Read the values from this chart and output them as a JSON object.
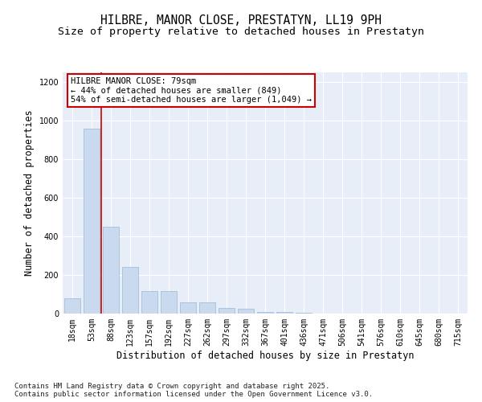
{
  "title": "HILBRE, MANOR CLOSE, PRESTATYN, LL19 9PH",
  "subtitle": "Size of property relative to detached houses in Prestatyn",
  "xlabel": "Distribution of detached houses by size in Prestatyn",
  "ylabel": "Number of detached properties",
  "categories": [
    "18sqm",
    "53sqm",
    "88sqm",
    "123sqm",
    "157sqm",
    "192sqm",
    "227sqm",
    "262sqm",
    "297sqm",
    "332sqm",
    "367sqm",
    "401sqm",
    "436sqm",
    "471sqm",
    "506sqm",
    "541sqm",
    "576sqm",
    "610sqm",
    "645sqm",
    "680sqm",
    "715sqm"
  ],
  "values": [
    80,
    960,
    450,
    240,
    115,
    115,
    60,
    60,
    30,
    25,
    10,
    10,
    5,
    0,
    0,
    0,
    0,
    0,
    0,
    0,
    0
  ],
  "bar_color": "#c9d9ee",
  "bar_edge_color": "#9ab8d8",
  "vline_x_index": 2,
  "vline_color": "#cc0000",
  "vline_linewidth": 1.2,
  "annotation_text": "HILBRE MANOR CLOSE: 79sqm\n← 44% of detached houses are smaller (849)\n54% of semi-detached houses are larger (1,049) →",
  "annotation_box_color": "#ffffff",
  "annotation_box_edge": "#cc0000",
  "ylim": [
    0,
    1250
  ],
  "yticks": [
    0,
    200,
    400,
    600,
    800,
    1000,
    1200
  ],
  "background_color": "#e8eef8",
  "footer_text": "Contains HM Land Registry data © Crown copyright and database right 2025.\nContains public sector information licensed under the Open Government Licence v3.0.",
  "title_fontsize": 10.5,
  "subtitle_fontsize": 9.5,
  "ylabel_fontsize": 8.5,
  "xlabel_fontsize": 8.5,
  "tick_fontsize": 7,
  "footer_fontsize": 6.5,
  "annotation_fontsize": 7.5
}
